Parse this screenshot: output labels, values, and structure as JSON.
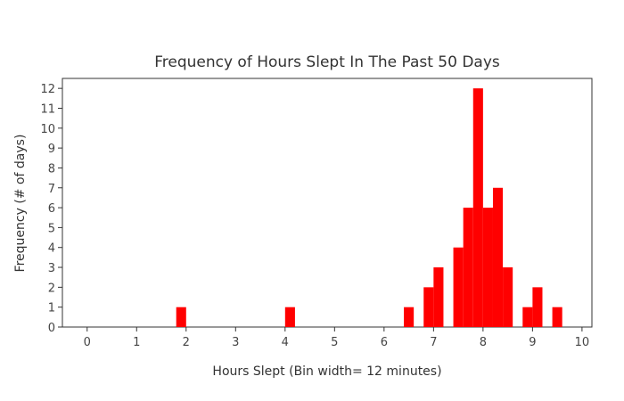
{
  "chart_data": {
    "type": "bar",
    "title": "Frequency of Hours Slept In The Past 50 Days",
    "xlabel": "Hours Slept (Bin width= 12 minutes)",
    "ylabel": "Frequency (# of days)",
    "bin_width": 0.2,
    "xlim": [
      -0.5,
      10.2
    ],
    "ylim": [
      0,
      12.5
    ],
    "xticks": [
      0,
      1,
      2,
      3,
      4,
      5,
      6,
      7,
      8,
      9,
      10
    ],
    "yticks": [
      0,
      1,
      2,
      3,
      4,
      5,
      6,
      7,
      8,
      9,
      10,
      11,
      12
    ],
    "bar_color": "#ff0000",
    "grid": false,
    "bins": [
      {
        "x": 1.8,
        "count": 1
      },
      {
        "x": 4.0,
        "count": 1
      },
      {
        "x": 6.4,
        "count": 1
      },
      {
        "x": 6.8,
        "count": 2
      },
      {
        "x": 7.0,
        "count": 3
      },
      {
        "x": 7.4,
        "count": 4
      },
      {
        "x": 7.6,
        "count": 6
      },
      {
        "x": 7.8,
        "count": 12
      },
      {
        "x": 8.0,
        "count": 6
      },
      {
        "x": 8.2,
        "count": 7
      },
      {
        "x": 8.4,
        "count": 3
      },
      {
        "x": 8.8,
        "count": 1
      },
      {
        "x": 9.0,
        "count": 2
      },
      {
        "x": 9.4,
        "count": 1
      }
    ]
  }
}
